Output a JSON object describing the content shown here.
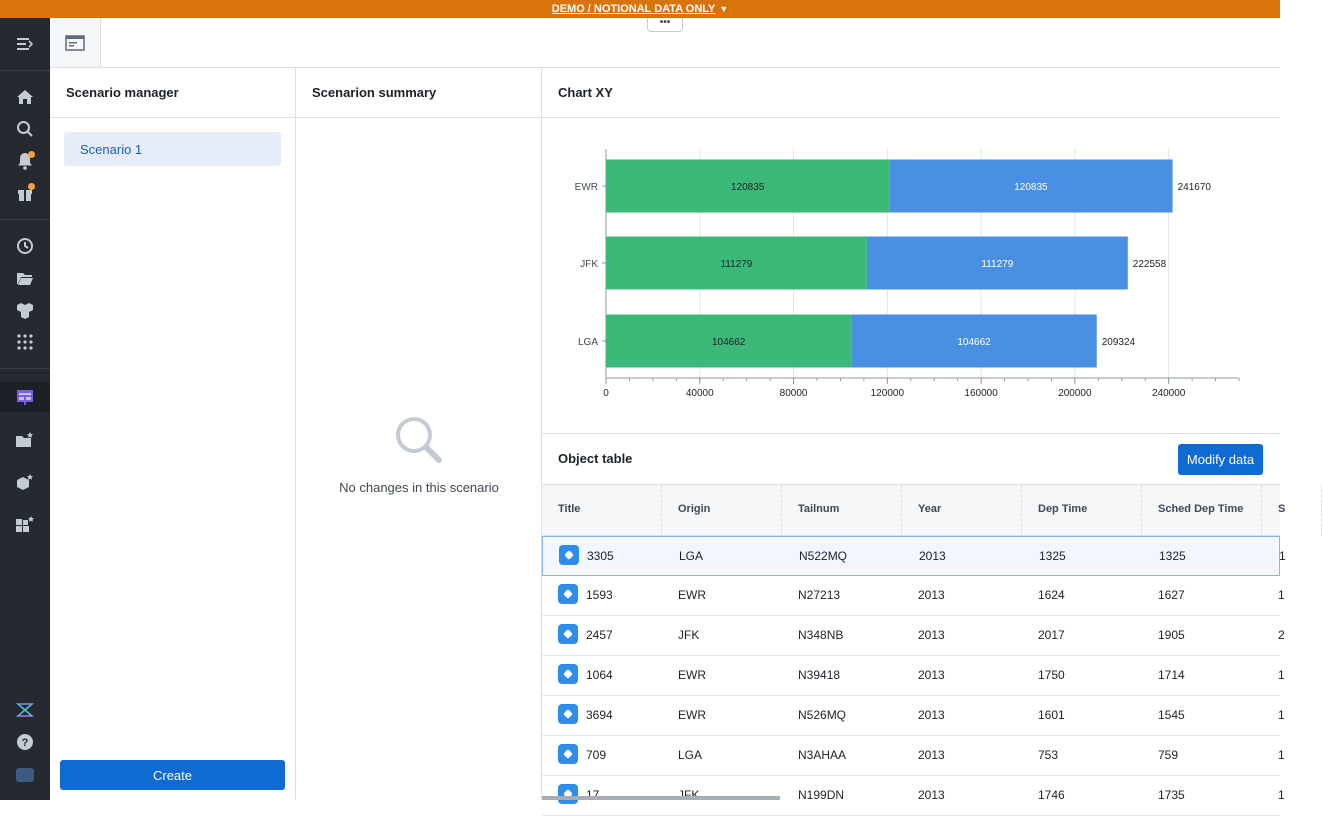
{
  "banner": {
    "text": "DEMO / NOTIONAL DATA ONLY"
  },
  "topbar": {
    "more_label": "•••"
  },
  "scenario_manager": {
    "title": "Scenario manager",
    "items": [
      {
        "label": "Scenario 1"
      }
    ],
    "create_label": "Create"
  },
  "scenario_summary": {
    "title": "Scenarion summary",
    "empty_message": "No changes in this scenario"
  },
  "chart_panel": {
    "title": "Chart XY"
  },
  "chart_data": {
    "type": "bar",
    "orientation": "horizontal",
    "stacked": true,
    "categories": [
      "EWR",
      "JFK",
      "LGA"
    ],
    "series": [
      {
        "values": [
          120835,
          111279,
          104662
        ],
        "color": "#3cb878"
      },
      {
        "values": [
          120835,
          111279,
          104662
        ],
        "color": "#4a90e2"
      }
    ],
    "totals": [
      241670,
      222558,
      209324
    ],
    "xlim": [
      0,
      270000
    ],
    "xticks": [
      0,
      40000,
      80000,
      120000,
      160000,
      200000,
      240000
    ],
    "grid": true
  },
  "object_table": {
    "title": "Object table",
    "modify_label": "Modify data",
    "columns": [
      "Title",
      "Origin",
      "Tailnum",
      "Year",
      "Dep Time",
      "Sched Dep Time",
      "S"
    ],
    "rows": [
      [
        "3305",
        "LGA",
        "N522MQ",
        "2013",
        "1325",
        "1325",
        "1"
      ],
      [
        "1593",
        "EWR",
        "N27213",
        "2013",
        "1624",
        "1627",
        "1"
      ],
      [
        "2457",
        "JFK",
        "N348NB",
        "2013",
        "2017",
        "1905",
        "2"
      ],
      [
        "1064",
        "EWR",
        "N39418",
        "2013",
        "1750",
        "1714",
        "1"
      ],
      [
        "3694",
        "EWR",
        "N526MQ",
        "2013",
        "1601",
        "1545",
        "1"
      ],
      [
        "709",
        "LGA",
        "N3AHAA",
        "2013",
        "753",
        "759",
        "1"
      ],
      [
        "17",
        "JFK",
        "N199DN",
        "2013",
        "1746",
        "1735",
        "1"
      ]
    ],
    "selected_row": 0
  },
  "colors": {
    "banner": "#d9730d",
    "nav_bg": "#252a31",
    "primary": "#0f6ad2",
    "notif_dot": "#f0a43a"
  }
}
